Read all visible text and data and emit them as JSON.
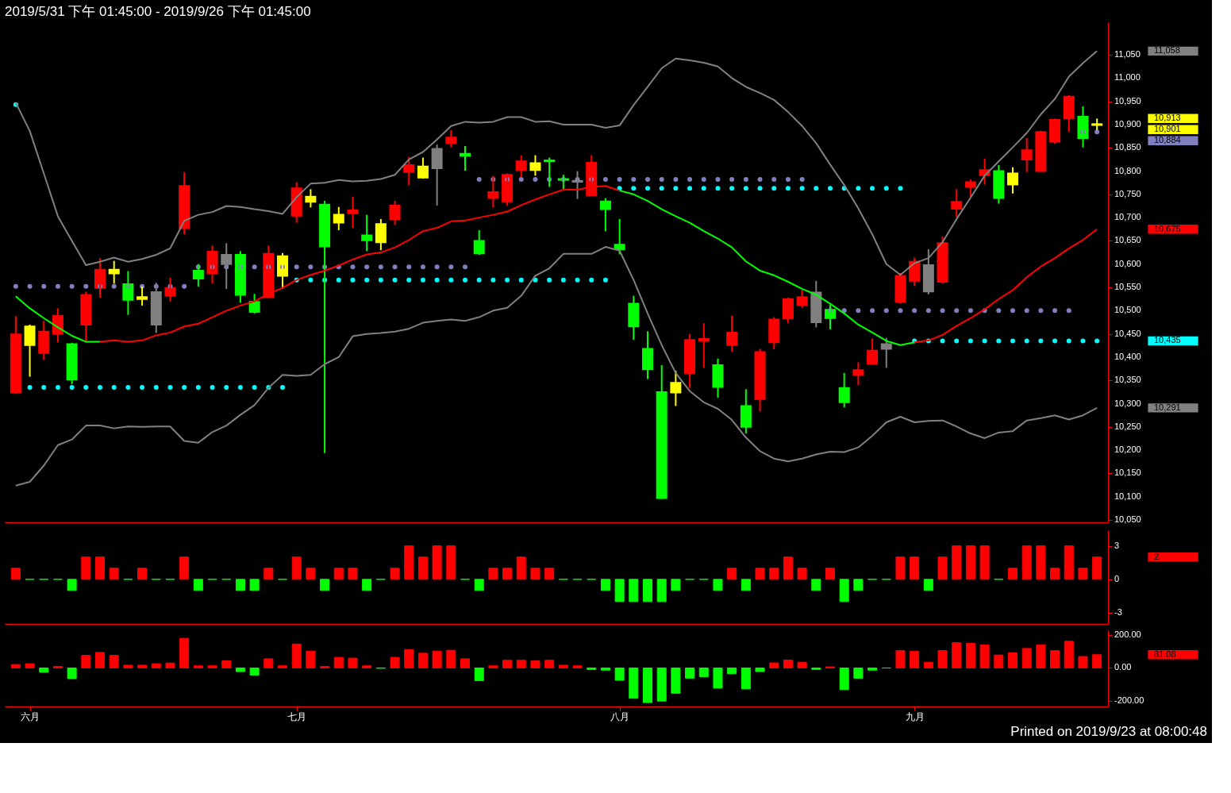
{
  "chart_data": [
    {
      "type": "candlestick",
      "title": "2019/5/31 下午 01:45:00 - 2019/9/26 下午 01:45:00",
      "categories": [
        null,
        null,
        null,
        null,
        null,
        null,
        null,
        null,
        null,
        null,
        null,
        null,
        null,
        null,
        null,
        null,
        null,
        null,
        null,
        null,
        null,
        null,
        null,
        null,
        null,
        null,
        null,
        null,
        null,
        null,
        null,
        null,
        null,
        null,
        null,
        null,
        null,
        null,
        null,
        null,
        null,
        null,
        null,
        null,
        null,
        null,
        null,
        null,
        null,
        null,
        null,
        null,
        null,
        null,
        null,
        null,
        null,
        null,
        null,
        null,
        null,
        null,
        null,
        null,
        null,
        null,
        null,
        null,
        null,
        null,
        null,
        null,
        null,
        null,
        null,
        null,
        null,
        null
      ],
      "ohlc": [
        [
          10324,
          10488,
          10321,
          10449
        ],
        [
          10426,
          10470,
          10358,
          10466
        ],
        [
          10409,
          10478,
          10394,
          10455
        ],
        [
          10450,
          10505,
          10432,
          10489
        ],
        [
          10428,
          10431,
          10342,
          10352
        ],
        [
          10470,
          10541,
          10435,
          10534
        ],
        [
          10549,
          10613,
          10528,
          10588
        ],
        [
          10580,
          10607,
          10558,
          10588
        ],
        [
          10557,
          10585,
          10491,
          10523
        ],
        [
          10525,
          10552,
          10511,
          10529
        ],
        [
          10540,
          10560,
          10452,
          10470
        ],
        [
          10532,
          10571,
          10520,
          10549
        ],
        [
          10677,
          10798,
          10664,
          10768
        ],
        [
          10586,
          10600,
          10552,
          10569
        ],
        [
          10580,
          10640,
          10558,
          10627
        ],
        [
          10620,
          10645,
          10547,
          10600
        ],
        [
          10620,
          10628,
          10517,
          10534
        ],
        [
          10519,
          10536,
          10494,
          10497
        ],
        [
          10529,
          10640,
          10526,
          10622
        ],
        [
          10575,
          10624,
          10547,
          10617
        ],
        [
          10704,
          10776,
          10689,
          10763
        ],
        [
          10734,
          10761,
          10722,
          10745
        ],
        [
          10728,
          10736,
          10194,
          10638
        ],
        [
          10689,
          10723,
          10673,
          10706
        ],
        [
          10709,
          10745,
          10678,
          10716
        ],
        [
          10662,
          10706,
          10628,
          10651
        ],
        [
          10647,
          10697,
          10630,
          10686
        ],
        [
          10697,
          10736,
          10684,
          10726
        ],
        [
          10798,
          10830,
          10770,
          10813
        ],
        [
          10786,
          10829,
          10784,
          10810
        ],
        [
          10848,
          10857,
          10726,
          10806
        ],
        [
          10860,
          10888,
          10851,
          10872
        ],
        [
          10837,
          10854,
          10801,
          10833
        ],
        [
          10650,
          10673,
          10620,
          10623
        ],
        [
          10742,
          10790,
          10722,
          10755
        ],
        [
          10735,
          10795,
          10726,
          10792
        ],
        [
          10802,
          10834,
          10787,
          10821
        ],
        [
          10802,
          10834,
          10790,
          10817
        ],
        [
          10823,
          10829,
          10766,
          10821
        ],
        [
          10783,
          10792,
          10761,
          10781
        ],
        [
          10779,
          10800,
          10740,
          10777
        ],
        [
          10748,
          10834,
          10748,
          10818
        ],
        [
          10735,
          10742,
          10671,
          10718
        ],
        [
          10642,
          10697,
          10621,
          10632
        ],
        [
          10515,
          10532,
          10437,
          10466
        ],
        [
          10418,
          10456,
          10353,
          10374
        ],
        [
          10325,
          10383,
          10095,
          10097
        ],
        [
          10324,
          10371,
          10295,
          10345
        ],
        [
          10366,
          10450,
          10334,
          10437
        ],
        [
          10435,
          10473,
          10377,
          10439
        ],
        [
          10383,
          10397,
          10313,
          10336
        ],
        [
          10426,
          10489,
          10412,
          10453
        ],
        [
          10295,
          10331,
          10236,
          10250
        ],
        [
          10310,
          10418,
          10283,
          10411
        ],
        [
          10432,
          10486,
          10417,
          10481
        ],
        [
          10483,
          10528,
          10473,
          10525
        ],
        [
          10512,
          10545,
          10506,
          10529
        ],
        [
          10539,
          10564,
          10464,
          10475
        ],
        [
          10502,
          10512,
          10460,
          10484
        ],
        [
          10334,
          10366,
          10292,
          10303
        ],
        [
          10362,
          10389,
          10340,
          10372
        ],
        [
          10386,
          10440,
          10385,
          10414
        ],
        [
          10428,
          10441,
          10377,
          10418
        ],
        [
          10519,
          10581,
          10515,
          10575
        ],
        [
          10564,
          10614,
          10553,
          10605
        ],
        [
          10598,
          10632,
          10535,
          10541
        ],
        [
          10562,
          10659,
          10558,
          10645
        ],
        [
          10719,
          10761,
          10702,
          10734
        ],
        [
          10766,
          10782,
          10745,
          10776
        ],
        [
          10791,
          10827,
          10771,
          10802
        ],
        [
          10800,
          10813,
          10730,
          10742
        ],
        [
          10771,
          10808,
          10752,
          10795
        ],
        [
          10825,
          10871,
          10798,
          10845
        ],
        [
          10800,
          10887,
          10800,
          10884
        ],
        [
          10863,
          10913,
          10859,
          10910
        ],
        [
          10913,
          10963,
          10884,
          10960
        ],
        [
          10917,
          10939,
          10851,
          10871
        ],
        [
          10899,
          10913,
          10888,
          10901
        ]
      ],
      "colors": [
        "#ff0000",
        "#ffff00",
        "#ff0000",
        "#ff0000",
        "#00ff00",
        "#ff0000",
        "#ff0000",
        "#ffff00",
        "#00ff00",
        "#ffff00",
        "#808080",
        "#ff0000",
        "#ff0000",
        "#00ff00",
        "#ff0000",
        "#808080",
        "#00ff00",
        "#00ff00",
        "#ff0000",
        "#ffff00",
        "#ff0000",
        "#ffff00",
        "#00ff00",
        "#ffff00",
        "#ff0000",
        "#00ff00",
        "#ffff00",
        "#ff0000",
        "#ff0000",
        "#ffff00",
        "#808080",
        "#ff0000",
        "#00ff00",
        "#00ff00",
        "#ff0000",
        "#ff0000",
        "#ff0000",
        "#ffff00",
        "#00ff00",
        "#00ff00",
        "#808080",
        "#ff0000",
        "#00ff00",
        "#00ff00",
        "#00ff00",
        "#00ff00",
        "#00ff00",
        "#ffff00",
        "#ff0000",
        "#ff0000",
        "#00ff00",
        "#ff0000",
        "#00ff00",
        "#ff0000",
        "#ff0000",
        "#ff0000",
        "#ff0000",
        "#808080",
        "#00ff00",
        "#00ff00",
        "#ff0000",
        "#ff0000",
        "#808080",
        "#ff0000",
        "#ff0000",
        "#808080",
        "#ff0000",
        "#ff0000",
        "#ff0000",
        "#ff0000",
        "#00ff00",
        "#ffff00",
        "#ff0000",
        "#ff0000",
        "#ff0000",
        "#ff0000",
        "#00ff00",
        "#ffff00"
      ],
      "series": [
        {
          "type": "line",
          "color": "#808080",
          "values": [
            10947,
            10886,
            10795,
            10703,
            10650,
            10598,
            10605,
            10614,
            10605,
            10611,
            10620,
            10634,
            10693,
            10706,
            10712,
            10725,
            10723,
            10718,
            10714,
            10708,
            10744,
            10773,
            10775,
            10781,
            10778,
            10779,
            10783,
            10792,
            10825,
            10841,
            10868,
            10897,
            10906,
            10904,
            10906,
            10916,
            10916,
            10906,
            10907,
            10900,
            10900,
            10900,
            10893,
            10898,
            10942,
            10981,
            11021,
            11042,
            11038,
            11033,
            11025,
            11000,
            10981,
            10968,
            10953,
            10927,
            10897,
            10860,
            10814,
            10770,
            10720,
            10664,
            10600,
            10577,
            10602,
            10613,
            10647,
            10697,
            10743,
            10790,
            10821,
            10851,
            10882,
            10922,
            10955,
            11003,
            11032,
            11058
          ]
        },
        {
          "type": "line",
          "color": "#808080",
          "values": [
            10124,
            10132,
            10167,
            10211,
            10223,
            10253,
            10253,
            10247,
            10251,
            10250,
            10251,
            10251,
            10220,
            10216,
            10239,
            10253,
            10276,
            10297,
            10334,
            10362,
            10360,
            10362,
            10385,
            10400,
            10445,
            10450,
            10452,
            10455,
            10461,
            10474,
            10478,
            10481,
            10478,
            10486,
            10500,
            10506,
            10532,
            10575,
            10591,
            10622,
            10622,
            10622,
            10637,
            10629,
            10566,
            10494,
            10426,
            10366,
            10327,
            10303,
            10289,
            10265,
            10227,
            10198,
            10182,
            10176,
            10182,
            10191,
            10197,
            10196,
            10206,
            10231,
            10260,
            10272,
            10260,
            10263,
            10264,
            10251,
            10236,
            10226,
            10238,
            10241,
            10264,
            10269,
            10275,
            10266,
            10275,
            10291
          ]
        },
        {
          "type": "line",
          "color": "#00ff00",
          "values": [
            10531,
            10505,
            10484,
            10464,
            10446,
            10433,
            10433,
            null,
            null,
            null,
            null,
            null,
            null,
            null,
            null,
            null,
            null,
            null,
            null,
            null,
            null,
            null,
            null,
            null,
            null,
            null,
            null,
            null,
            null,
            null,
            null,
            null,
            null,
            null,
            null,
            null,
            null,
            null,
            null,
            null,
            null,
            null,
            null,
            10758,
            10750,
            10736,
            10718,
            10703,
            10689,
            10671,
            10655,
            10636,
            10606,
            10586,
            10576,
            10562,
            10547,
            10534,
            10515,
            10494,
            10470,
            10453,
            10435,
            10426,
            10432,
            null,
            null,
            null,
            null,
            null,
            null,
            null,
            null,
            null,
            null,
            null,
            null,
            null
          ]
        },
        {
          "type": "line",
          "color": "#ff0000",
          "values": [
            null,
            null,
            null,
            null,
            null,
            null,
            10433,
            10436,
            10433,
            10436,
            10447,
            10453,
            10466,
            10472,
            10486,
            10500,
            10511,
            10520,
            10536,
            10549,
            10566,
            10577,
            10586,
            10597,
            10610,
            10621,
            10625,
            10636,
            10652,
            10671,
            10678,
            10692,
            10694,
            10700,
            10706,
            10713,
            10727,
            10739,
            10750,
            10760,
            10760,
            10766,
            10768,
            10758,
            null,
            null,
            null,
            null,
            null,
            null,
            null,
            null,
            null,
            null,
            null,
            null,
            null,
            null,
            null,
            null,
            null,
            null,
            null,
            null,
            10432,
            10436,
            10448,
            10467,
            10484,
            10503,
            10525,
            10544,
            10572,
            10595,
            10613,
            10634,
            10652,
            10675
          ]
        },
        {
          "type": "scatter",
          "marker": "circle",
          "color": "#8080c0",
          "values": [
            10552,
            10552,
            10552,
            10552,
            10552,
            10552,
            10552,
            10552,
            10552,
            10552,
            10552,
            10552,
            10552,
            10594,
            10594,
            10594,
            10594,
            10594,
            10594,
            10594,
            10594,
            10594,
            10594,
            10594,
            10594,
            10594,
            10594,
            10594,
            10594,
            10594,
            10594,
            10594,
            10594,
            10782,
            10782,
            10782,
            10782,
            10782,
            10782,
            10782,
            10782,
            10782,
            10782,
            10782,
            10782,
            10782,
            10782,
            10782,
            10782,
            10782,
            10782,
            10782,
            10782,
            10782,
            10782,
            10782,
            10782,
            null,
            10500,
            10500,
            10500,
            10500,
            10500,
            10500,
            10500,
            10500,
            10500,
            10500,
            10500,
            10500,
            10500,
            10500,
            10500,
            10500,
            10500,
            10500,
            10884,
            10884
          ]
        },
        {
          "type": "scatter",
          "marker": "circle",
          "color": "#00ffff",
          "values": [
            10943,
            10335,
            10335,
            10335,
            10335,
            10335,
            10335,
            10335,
            10335,
            10335,
            10335,
            10335,
            10335,
            10335,
            10335,
            10335,
            10335,
            10335,
            10335,
            10335,
            10566,
            10566,
            10566,
            10566,
            10566,
            10566,
            10566,
            10566,
            10566,
            10566,
            10566,
            10566,
            10566,
            10566,
            10566,
            10566,
            10566,
            10566,
            10566,
            10566,
            10566,
            10566,
            10566,
            10763,
            10763,
            10763,
            10763,
            10763,
            10763,
            10763,
            10763,
            10763,
            10763,
            10763,
            10763,
            10763,
            10763,
            10763,
            10763,
            10763,
            10763,
            10763,
            10763,
            10763,
            10435,
            10435,
            10435,
            10435,
            10435,
            10435,
            10435,
            10435,
            10435,
            10435,
            10435,
            10435,
            10435,
            10435
          ]
        }
      ],
      "ylim": [
        10045,
        11120
      ],
      "yticks": [
        {
          "value": 10050,
          "label": "10,050"
        },
        {
          "value": 10100,
          "label": "10,100"
        },
        {
          "value": 10150,
          "label": "10,150"
        },
        {
          "value": 10200,
          "label": "10,200"
        },
        {
          "value": 10250,
          "label": "10,250"
        },
        {
          "value": 10300,
          "label": "10,300"
        },
        {
          "value": 10350,
          "label": "10,350"
        },
        {
          "value": 10400,
          "label": "10,400"
        },
        {
          "value": 10450,
          "label": "10,450"
        },
        {
          "value": 10500,
          "label": "10,500"
        },
        {
          "value": 10550,
          "label": "10,550"
        },
        {
          "value": 10600,
          "label": "10,600"
        },
        {
          "value": 10650,
          "label": "10,650"
        },
        {
          "value": 10700,
          "label": "10,700"
        },
        {
          "value": 10750,
          "label": "10,750"
        },
        {
          "value": 10800,
          "label": "10,800"
        },
        {
          "value": 10850,
          "label": "10,850"
        },
        {
          "value": 10900,
          "label": "10,900"
        },
        {
          "value": 10950,
          "label": "10,950"
        },
        {
          "value": 11000,
          "label": "11,000"
        },
        {
          "value": 11050,
          "label": "11,050"
        }
      ],
      "tick_labels": "y",
      "annotations": [
        "11,058",
        "10,913",
        "10,901",
        "10,884",
        "10,675",
        "10,435",
        "10,291"
      ]
    },
    {
      "type": "bar",
      "categories": [
        null,
        null,
        null,
        null,
        null,
        null,
        null,
        null,
        null,
        null,
        null,
        null,
        null,
        null,
        null,
        null,
        null,
        null,
        null,
        null,
        null,
        null,
        null,
        null,
        null,
        null,
        null,
        null,
        null,
        null,
        null,
        null,
        null,
        null,
        null,
        null,
        null,
        null,
        null,
        null,
        null,
        null,
        null,
        null,
        null,
        null,
        null,
        null,
        null,
        null,
        null,
        null,
        null,
        null,
        null,
        null,
        null,
        null,
        null,
        null,
        null,
        null,
        null,
        null,
        null,
        null,
        null,
        null,
        null,
        null,
        null,
        null,
        null,
        null,
        null,
        null,
        null,
        null
      ],
      "values": [
        1,
        0,
        0,
        0,
        -1,
        2,
        2,
        1,
        0,
        1,
        0,
        0,
        2,
        -1,
        0,
        0,
        -1,
        -1,
        1,
        0,
        2,
        1,
        -1,
        1,
        1,
        -1,
        0,
        1,
        3,
        2,
        3,
        3,
        0,
        -1,
        1,
        1,
        2,
        1,
        1,
        0,
        0,
        0,
        -1,
        -2,
        -2,
        -2,
        -2,
        -1,
        0,
        0,
        -1,
        1,
        -1,
        1,
        1,
        2,
        1,
        -1,
        1,
        -2,
        -1,
        0,
        0,
        2,
        2,
        -1,
        2,
        3,
        3,
        3,
        0,
        1,
        3,
        3,
        1,
        3,
        1,
        2
      ],
      "colors": [
        "#ff0000",
        "#00ff00",
        "#00ff00",
        "#00ff00",
        "#00ff00",
        "#ff0000",
        "#ff0000",
        "#ff0000",
        "#00ff00",
        "#ff0000",
        "#00ff00",
        "#00ff00",
        "#ff0000",
        "#00ff00",
        "#00ff00",
        "#00ff00",
        "#00ff00",
        "#00ff00",
        "#ff0000",
        "#00ff00",
        "#ff0000",
        "#ff0000",
        "#00ff00",
        "#ff0000",
        "#ff0000",
        "#00ff00",
        "#00ff00",
        "#ff0000",
        "#ff0000",
        "#ff0000",
        "#ff0000",
        "#ff0000",
        "#00ff00",
        "#00ff00",
        "#ff0000",
        "#ff0000",
        "#ff0000",
        "#ff0000",
        "#ff0000",
        "#00ff00",
        "#00ff00",
        "#00ff00",
        "#00ff00",
        "#00ff00",
        "#00ff00",
        "#00ff00",
        "#00ff00",
        "#00ff00",
        "#00ff00",
        "#00ff00",
        "#00ff00",
        "#ff0000",
        "#00ff00",
        "#ff0000",
        "#ff0000",
        "#ff0000",
        "#ff0000",
        "#00ff00",
        "#ff0000",
        "#00ff00",
        "#00ff00",
        "#00ff00",
        "#00ff00",
        "#ff0000",
        "#ff0000",
        "#00ff00",
        "#ff0000",
        "#ff0000",
        "#ff0000",
        "#ff0000",
        "#00ff00",
        "#ff0000",
        "#ff0000",
        "#ff0000",
        "#ff0000",
        "#ff0000",
        "#ff0000",
        "#ff0000"
      ],
      "ylim": [
        -4,
        4.4
      ],
      "yticks": [
        3,
        0,
        -3
      ],
      "tick_labels": "y",
      "annotations": [
        "2"
      ]
    },
    {
      "type": "bar",
      "categories": [
        null,
        "六月",
        null,
        null,
        null,
        null,
        null,
        null,
        null,
        null,
        null,
        null,
        null,
        null,
        null,
        null,
        null,
        null,
        null,
        null,
        "七月",
        null,
        null,
        null,
        null,
        null,
        null,
        null,
        null,
        null,
        null,
        null,
        null,
        null,
        null,
        null,
        null,
        null,
        null,
        null,
        null,
        null,
        null,
        "八月",
        null,
        null,
        null,
        null,
        null,
        null,
        null,
        null,
        null,
        null,
        null,
        null,
        null,
        null,
        null,
        null,
        null,
        null,
        null,
        null,
        "九月",
        null,
        null,
        null,
        null,
        null,
        null,
        null,
        null,
        null,
        null,
        null,
        null,
        null
      ],
      "values": [
        21,
        26,
        -26,
        9,
        -65,
        77,
        95,
        77,
        17,
        17,
        26,
        30,
        181,
        13,
        13,
        43,
        -22,
        -43,
        56,
        13,
        146,
        103,
        9,
        65,
        60,
        13,
        -2,
        65,
        112,
        90,
        103,
        108,
        56,
        -77,
        13,
        47,
        47,
        43,
        47,
        17,
        13,
        -9,
        -13,
        -75,
        -185,
        -211,
        -202,
        -154,
        -62,
        -53,
        -123,
        -35,
        -128,
        -22,
        31,
        48,
        35,
        -9,
        7,
        -132,
        -62,
        -13,
        0,
        106,
        101,
        35,
        106,
        154,
        150,
        141,
        79,
        92,
        119,
        141,
        106,
        163,
        70,
        81.08
      ],
      "colors": [
        "#ff0000",
        "#ff0000",
        "#00ff00",
        "#ff0000",
        "#00ff00",
        "#ff0000",
        "#ff0000",
        "#ff0000",
        "#ff0000",
        "#ff0000",
        "#ff0000",
        "#ff0000",
        "#ff0000",
        "#ff0000",
        "#ff0000",
        "#ff0000",
        "#00ff00",
        "#00ff00",
        "#ff0000",
        "#ff0000",
        "#ff0000",
        "#ff0000",
        "#ff0000",
        "#ff0000",
        "#ff0000",
        "#ff0000",
        "#00ff00",
        "#ff0000",
        "#ff0000",
        "#ff0000",
        "#ff0000",
        "#ff0000",
        "#ff0000",
        "#00ff00",
        "#ff0000",
        "#ff0000",
        "#ff0000",
        "#ff0000",
        "#ff0000",
        "#ff0000",
        "#ff0000",
        "#00ff00",
        "#00ff00",
        "#00ff00",
        "#00ff00",
        "#00ff00",
        "#00ff00",
        "#00ff00",
        "#00ff00",
        "#00ff00",
        "#00ff00",
        "#00ff00",
        "#00ff00",
        "#00ff00",
        "#ff0000",
        "#ff0000",
        "#ff0000",
        "#00ff00",
        "#ff0000",
        "#00ff00",
        "#00ff00",
        "#00ff00",
        "#00ff00",
        "#ff0000",
        "#ff0000",
        "#ff0000",
        "#ff0000",
        "#ff0000",
        "#ff0000",
        "#ff0000",
        "#ff0000",
        "#ff0000",
        "#ff0000",
        "#ff0000",
        "#ff0000",
        "#ff0000",
        "#ff0000",
        "#ff0000"
      ],
      "ylim": [
        -235,
        230
      ],
      "yticks": [
        {
          "value": 200,
          "label": "200.00"
        },
        {
          "value": 0,
          "label": "0.00"
        },
        {
          "value": -200,
          "label": "-200.00"
        }
      ],
      "annotations": [
        "81.08",
        "Printed on 2019/9/23 at 08:00:48"
      ]
    }
  ]
}
